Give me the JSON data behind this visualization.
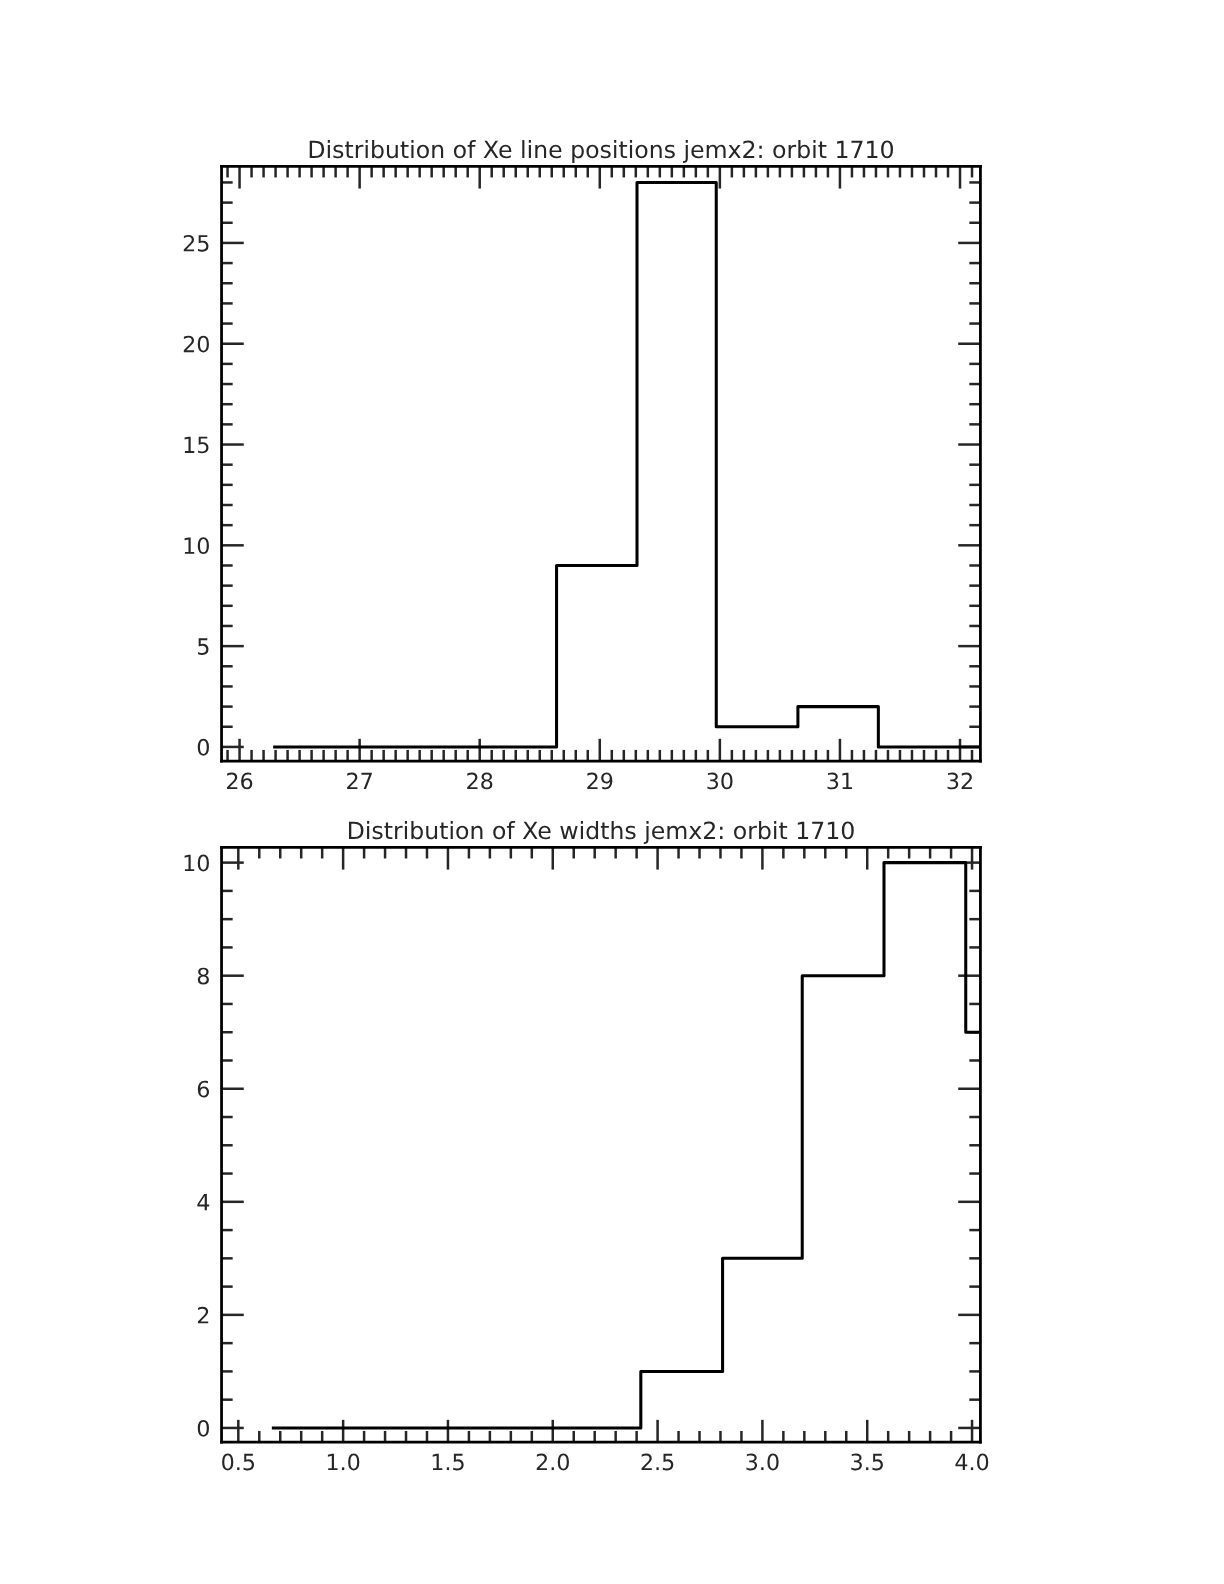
{
  "chart_data": [
    {
      "type": "histogram",
      "title": "Distribution of Xe line positions jemx2: orbit 1710",
      "bins": [
        26.28,
        28.64,
        29.31,
        29.97,
        30.65,
        31.32,
        32.17
      ],
      "values": [
        0,
        9,
        28,
        1,
        2,
        0
      ],
      "color": "#000000",
      "xlim": [
        25.85,
        32.17
      ],
      "xticks": [
        26,
        27,
        28,
        29,
        30,
        31,
        32
      ],
      "ylim": [
        -0.7,
        28.8
      ],
      "yticks": [
        0,
        5,
        10,
        15,
        20,
        25
      ]
    },
    {
      "type": "histogram",
      "title": "Distribution of Xe widths jemx2: orbit 1710",
      "bins": [
        0.66,
        2.42,
        2.81,
        3.19,
        3.58,
        3.97,
        4.04
      ],
      "values": [
        0,
        1,
        3,
        8,
        10,
        7
      ],
      "color": "#000000",
      "xlim": [
        0.42,
        4.04
      ],
      "xticks": [
        {
          "value": 0.5,
          "label": "0.5"
        },
        {
          "value": 1,
          "label": "1.0"
        },
        {
          "value": 1.5,
          "label": "1.5"
        },
        {
          "value": 2,
          "label": "2.0"
        },
        {
          "value": 2.5,
          "label": "2.5"
        },
        {
          "value": 3,
          "label": "3.0"
        },
        {
          "value": 3.5,
          "label": "3.5"
        },
        {
          "value": 4,
          "label": "4.0"
        }
      ],
      "ylim": [
        -0.25,
        10.27
      ],
      "yticks": [
        0,
        2,
        4,
        6,
        8,
        10
      ]
    }
  ]
}
